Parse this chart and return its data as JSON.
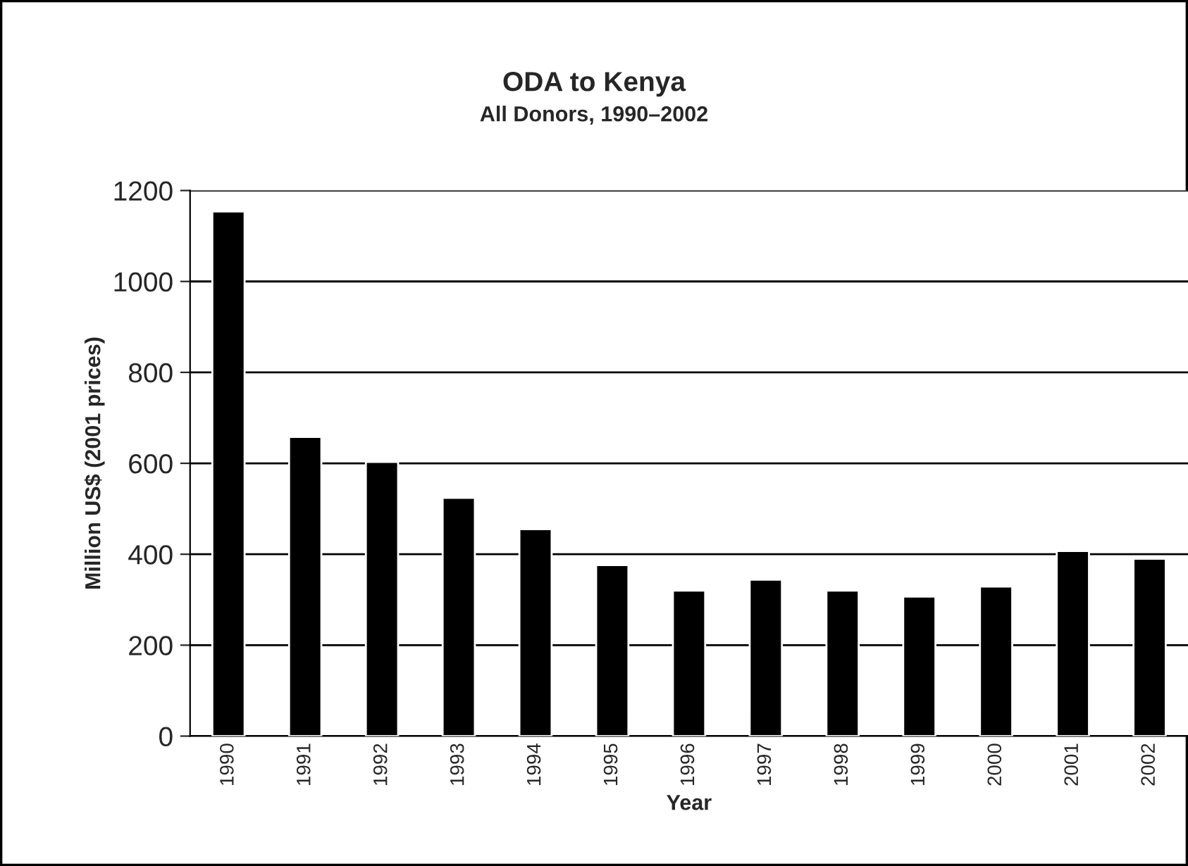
{
  "chart_data": {
    "type": "bar",
    "title": "ODA to Kenya",
    "subtitle": "All Donors, 1990–2002",
    "xlabel": "Year",
    "ylabel": "Million US$ (2001 prices)",
    "categories": [
      "1990",
      "1991",
      "1992",
      "1993",
      "1994",
      "1995",
      "1996",
      "1997",
      "1998",
      "1999",
      "2000",
      "2001",
      "2002"
    ],
    "values": [
      1154,
      658,
      603,
      524,
      455,
      376,
      320,
      344,
      320,
      307,
      329,
      407,
      390
    ],
    "color": "#000000",
    "ylim": [
      0,
      1200
    ],
    "yticks": [
      0,
      200,
      400,
      600,
      800,
      1000,
      1200
    ],
    "grid": "y",
    "legend": false
  }
}
